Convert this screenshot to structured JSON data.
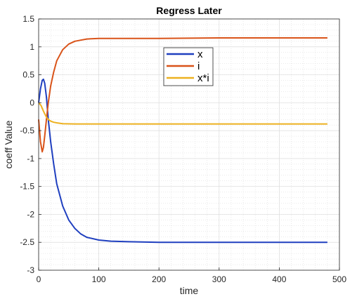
{
  "chart_data": {
    "type": "line",
    "title": "Regress Later",
    "xlabel": "time",
    "ylabel": "coeff Value",
    "xlim": [
      0,
      500
    ],
    "ylim": [
      -3,
      1.5
    ],
    "xticks": [
      "0",
      "100",
      "200",
      "300",
      "400",
      "500"
    ],
    "yticks": [
      "-3",
      "-2.5",
      "-2",
      "-1.5",
      "-1",
      "-0.5",
      "0",
      "0.5",
      "1",
      "1.5"
    ],
    "grid": true,
    "minor_grid": true,
    "legend_position": "top-center",
    "series": [
      {
        "name": "x",
        "color": "#1f3fbf",
        "points": [
          [
            0,
            0
          ],
          [
            3,
            0.25
          ],
          [
            6,
            0.4
          ],
          [
            8,
            0.42
          ],
          [
            10,
            0.35
          ],
          [
            13,
            0.1
          ],
          [
            16,
            -0.3
          ],
          [
            20,
            -0.7
          ],
          [
            25,
            -1.1
          ],
          [
            30,
            -1.45
          ],
          [
            40,
            -1.85
          ],
          [
            50,
            -2.1
          ],
          [
            60,
            -2.25
          ],
          [
            70,
            -2.35
          ],
          [
            80,
            -2.41
          ],
          [
            100,
            -2.46
          ],
          [
            120,
            -2.48
          ],
          [
            150,
            -2.49
          ],
          [
            200,
            -2.5
          ],
          [
            300,
            -2.5
          ],
          [
            400,
            -2.5
          ],
          [
            480,
            -2.5
          ]
        ]
      },
      {
        "name": "i",
        "color": "#d95319",
        "points": [
          [
            0,
            -0.3
          ],
          [
            3,
            -0.7
          ],
          [
            6,
            -0.88
          ],
          [
            8,
            -0.8
          ],
          [
            10,
            -0.6
          ],
          [
            13,
            -0.3
          ],
          [
            16,
            0
          ],
          [
            20,
            0.3
          ],
          [
            25,
            0.55
          ],
          [
            30,
            0.75
          ],
          [
            40,
            0.95
          ],
          [
            50,
            1.05
          ],
          [
            60,
            1.1
          ],
          [
            70,
            1.12
          ],
          [
            80,
            1.14
          ],
          [
            100,
            1.15
          ],
          [
            150,
            1.15
          ],
          [
            200,
            1.15
          ],
          [
            300,
            1.16
          ],
          [
            400,
            1.16
          ],
          [
            480,
            1.16
          ]
        ]
      },
      {
        "name": "x*i",
        "color": "#edb120",
        "points": [
          [
            0,
            0
          ],
          [
            4,
            -0.05
          ],
          [
            8,
            -0.15
          ],
          [
            12,
            -0.24
          ],
          [
            16,
            -0.3
          ],
          [
            20,
            -0.33
          ],
          [
            25,
            -0.35
          ],
          [
            30,
            -0.36
          ],
          [
            40,
            -0.375
          ],
          [
            60,
            -0.38
          ],
          [
            100,
            -0.38
          ],
          [
            200,
            -0.38
          ],
          [
            300,
            -0.38
          ],
          [
            400,
            -0.38
          ],
          [
            480,
            -0.38
          ]
        ]
      }
    ]
  }
}
